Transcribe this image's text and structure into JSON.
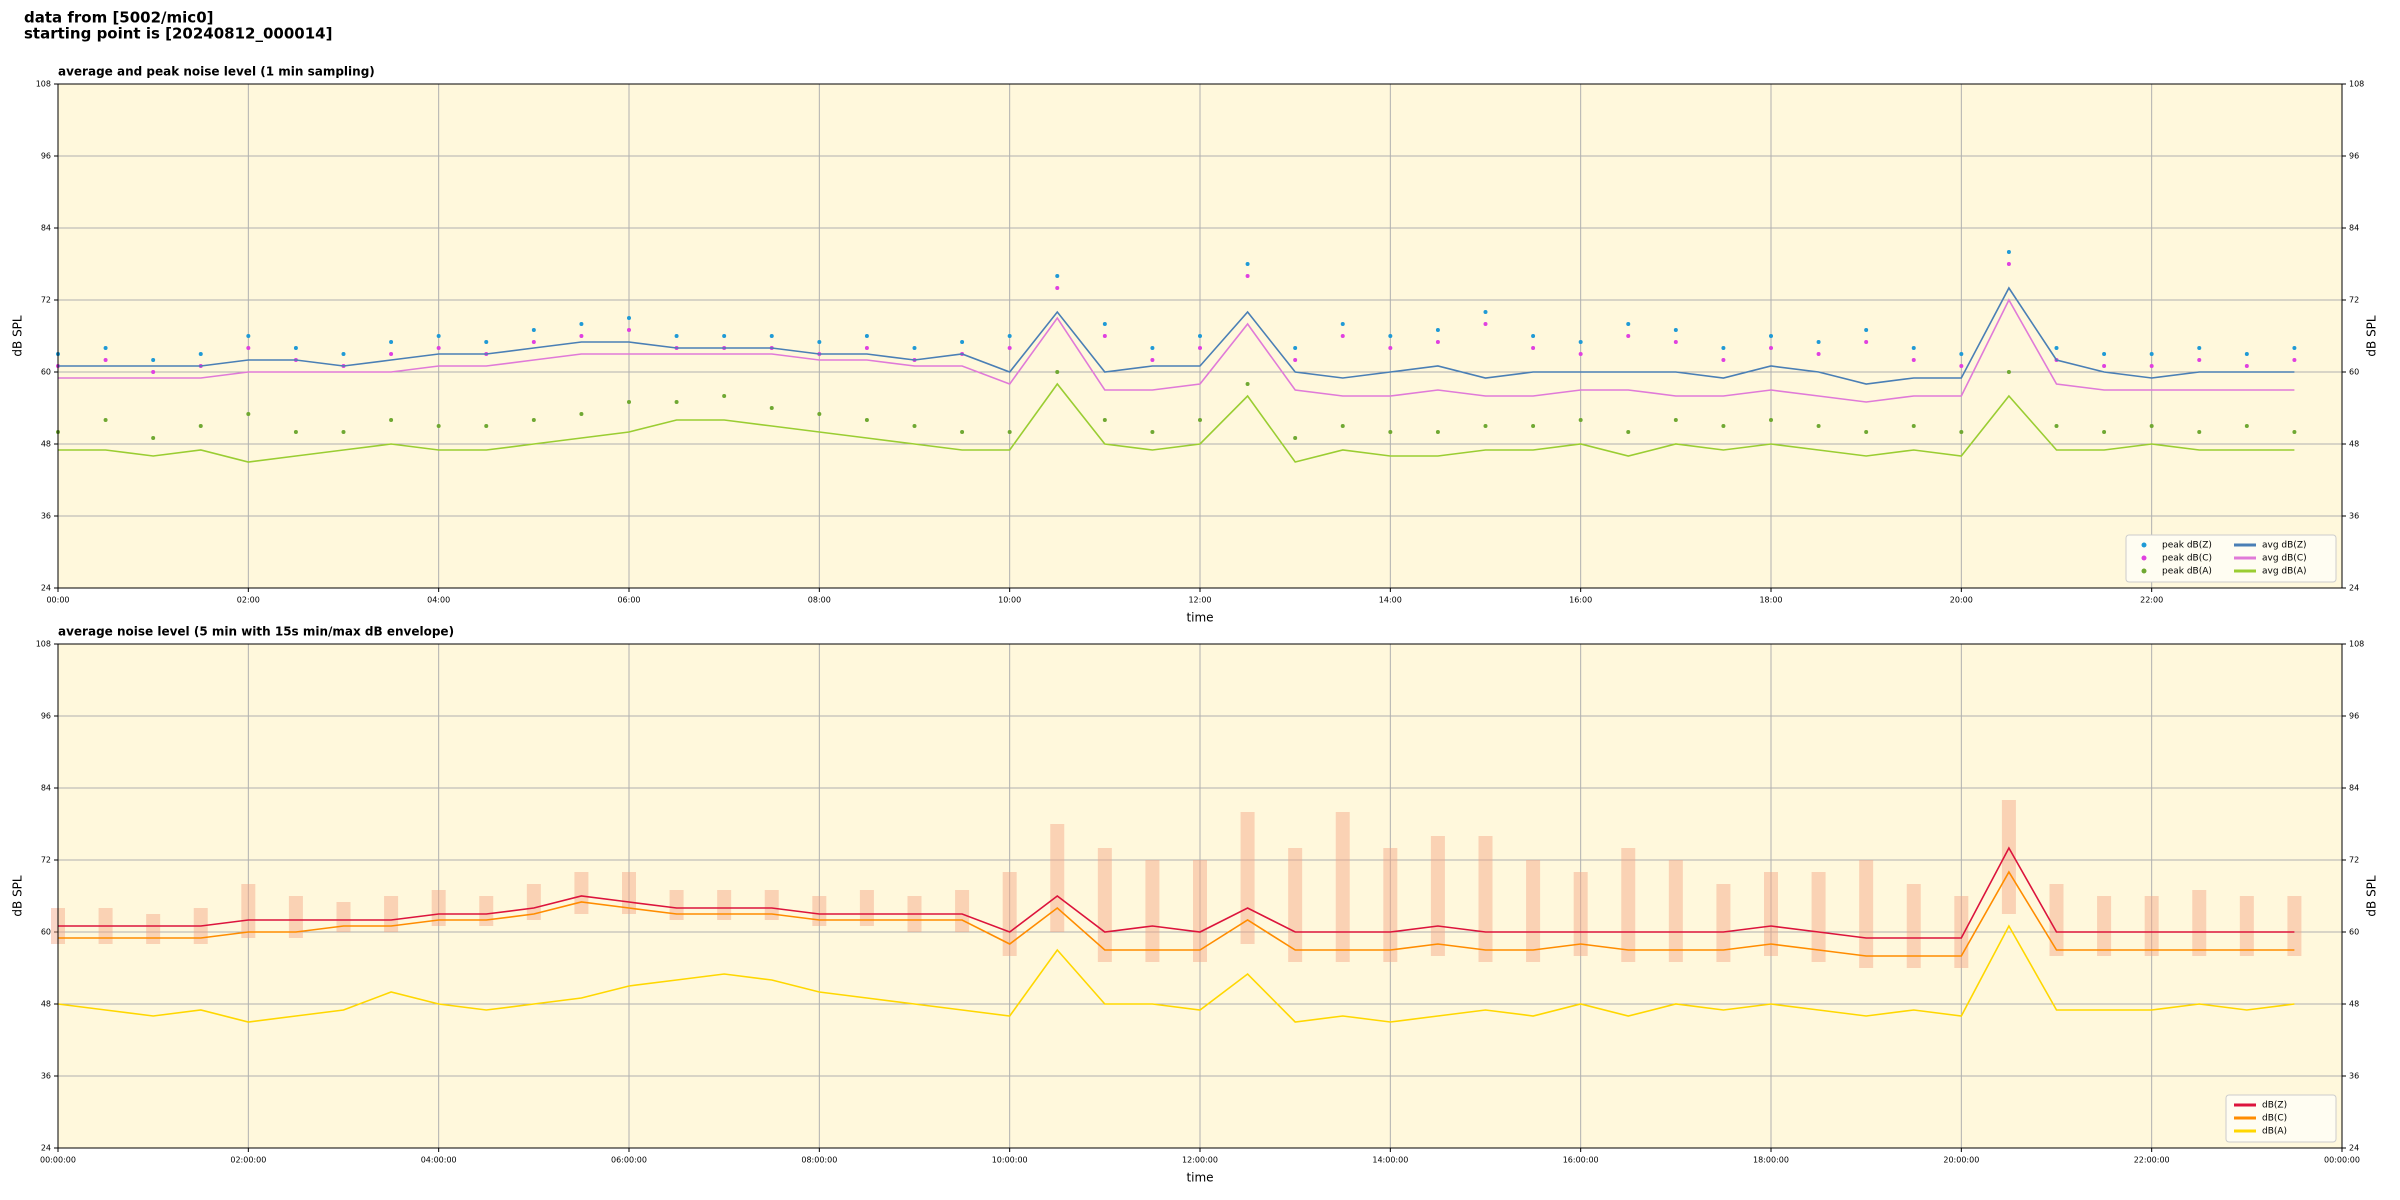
{
  "header": {
    "source": "data from [5002/mic0]",
    "start": "starting point is [20240812_000014]"
  },
  "chart_data": [
    {
      "type": "line",
      "title": "average and peak noise level (1 min sampling)",
      "xlabel": "time",
      "ylabel": "dB SPL",
      "y2label": "dB SPL",
      "xlim": [
        0,
        24
      ],
      "ylim": [
        24,
        108
      ],
      "y2lim": [
        24,
        108
      ],
      "grid": true,
      "background": "#fff8dc",
      "legend": "lower right",
      "legend_columns": 2,
      "xticks": [
        {
          "value": 0,
          "label": "00:00"
        },
        {
          "value": 2,
          "label": "02:00"
        },
        {
          "value": 4,
          "label": "04:00"
        },
        {
          "value": 6,
          "label": "06:00"
        },
        {
          "value": 8,
          "label": "08:00"
        },
        {
          "value": 10,
          "label": "10:00"
        },
        {
          "value": 12,
          "label": "12:00"
        },
        {
          "value": 14,
          "label": "14:00"
        },
        {
          "value": 16,
          "label": "16:00"
        },
        {
          "value": 18,
          "label": "18:00"
        },
        {
          "value": 20,
          "label": "20:00"
        },
        {
          "value": 22,
          "label": "22:00"
        }
      ],
      "yticks": [
        24,
        36,
        48,
        60,
        72,
        84,
        96,
        108
      ],
      "y2ticks": [
        24,
        36,
        48,
        60,
        72,
        84,
        96,
        108
      ],
      "x": [
        0,
        0.5,
        1,
        1.5,
        2,
        2.5,
        3,
        3.5,
        4,
        4.5,
        5,
        5.5,
        6,
        6.5,
        7,
        7.5,
        8,
        8.5,
        9,
        9.5,
        10,
        10.5,
        11,
        11.5,
        12,
        12.5,
        13,
        13.5,
        14,
        14.5,
        15,
        15.5,
        16,
        16.5,
        17,
        17.5,
        18,
        18.5,
        19,
        19.5,
        20,
        20.5,
        21,
        21.5,
        22,
        22.5,
        23,
        23.5
      ],
      "series": [
        {
          "name": "peak dB(Z)",
          "type": "scatter",
          "color": "#1f9ad6",
          "values": [
            63,
            64,
            62,
            63,
            66,
            64,
            63,
            65,
            66,
            65,
            67,
            68,
            69,
            66,
            66,
            66,
            65,
            66,
            64,
            65,
            66,
            76,
            68,
            64,
            66,
            78,
            64,
            68,
            66,
            67,
            70,
            66,
            65,
            68,
            67,
            64,
            66,
            65,
            67,
            64,
            63,
            80,
            64,
            63,
            63,
            64,
            63,
            64
          ]
        },
        {
          "name": "peak dB(C)",
          "type": "scatter",
          "color": "#e040e0",
          "values": [
            61,
            62,
            60,
            61,
            64,
            62,
            61,
            63,
            64,
            63,
            65,
            66,
            67,
            64,
            64,
            64,
            63,
            64,
            62,
            63,
            64,
            74,
            66,
            62,
            64,
            76,
            62,
            66,
            64,
            65,
            68,
            64,
            63,
            66,
            65,
            62,
            64,
            63,
            65,
            62,
            61,
            78,
            62,
            61,
            61,
            62,
            61,
            62
          ]
        },
        {
          "name": "peak dB(A)",
          "type": "scatter",
          "color": "#6fa832",
          "values": [
            50,
            52,
            49,
            51,
            53,
            50,
            50,
            52,
            51,
            51,
            52,
            53,
            55,
            55,
            56,
            54,
            53,
            52,
            51,
            50,
            50,
            60,
            52,
            50,
            52,
            58,
            49,
            51,
            50,
            50,
            51,
            51,
            52,
            50,
            52,
            51,
            52,
            51,
            50,
            51,
            50,
            60,
            51,
            50,
            51,
            50,
            51,
            50
          ]
        },
        {
          "name": "avg dB(Z)",
          "type": "line",
          "color": "#4a7fb5",
          "values": [
            61,
            61,
            61,
            61,
            62,
            62,
            61,
            62,
            63,
            63,
            64,
            65,
            65,
            64,
            64,
            64,
            63,
            63,
            62,
            63,
            60,
            70,
            60,
            61,
            61,
            70,
            60,
            59,
            60,
            61,
            59,
            60,
            60,
            60,
            60,
            59,
            61,
            60,
            58,
            59,
            59,
            74,
            62,
            60,
            59,
            60,
            60,
            60
          ]
        },
        {
          "name": "avg dB(C)",
          "type": "line",
          "color": "#e07ad8",
          "values": [
            59,
            59,
            59,
            59,
            60,
            60,
            60,
            60,
            61,
            61,
            62,
            63,
            63,
            63,
            63,
            63,
            62,
            62,
            61,
            61,
            58,
            69,
            57,
            57,
            58,
            68,
            57,
            56,
            56,
            57,
            56,
            56,
            57,
            57,
            56,
            56,
            57,
            56,
            55,
            56,
            56,
            72,
            58,
            57,
            57,
            57,
            57,
            57
          ]
        },
        {
          "name": "avg dB(A)",
          "type": "line",
          "color": "#9acd32",
          "values": [
            47,
            47,
            46,
            47,
            45,
            46,
            47,
            48,
            47,
            47,
            48,
            49,
            50,
            52,
            52,
            51,
            50,
            49,
            48,
            47,
            47,
            58,
            48,
            47,
            48,
            56,
            45,
            47,
            46,
            46,
            47,
            47,
            48,
            46,
            48,
            47,
            48,
            47,
            46,
            47,
            46,
            56,
            47,
            47,
            48,
            47,
            47,
            47
          ]
        }
      ]
    },
    {
      "type": "line",
      "title": "average noise level (5 min with 15s min/max dB envelope)",
      "xlabel": "time",
      "ylabel": "dB SPL",
      "y2label": "dB SPL",
      "xlim": [
        0,
        24
      ],
      "ylim": [
        24,
        108
      ],
      "y2lim": [
        24,
        108
      ],
      "grid": true,
      "background": "#fff8dc",
      "legend": "lower right",
      "legend_columns": 1,
      "xticks": [
        {
          "value": 0,
          "label": "00:00:00"
        },
        {
          "value": 2,
          "label": "02:00:00"
        },
        {
          "value": 4,
          "label": "04:00:00"
        },
        {
          "value": 6,
          "label": "06:00:00"
        },
        {
          "value": 8,
          "label": "08:00:00"
        },
        {
          "value": 10,
          "label": "10:00:00"
        },
        {
          "value": 12,
          "label": "12:00:00"
        },
        {
          "value": 14,
          "label": "14:00:00"
        },
        {
          "value": 16,
          "label": "16:00:00"
        },
        {
          "value": 18,
          "label": "18:00:00"
        },
        {
          "value": 20,
          "label": "20:00:00"
        },
        {
          "value": 22,
          "label": "22:00:00"
        },
        {
          "value": 24,
          "label": "00:00:00"
        }
      ],
      "yticks": [
        24,
        36,
        48,
        60,
        72,
        84,
        96,
        108
      ],
      "y2ticks": [
        24,
        36,
        48,
        60,
        72,
        84,
        96,
        108
      ],
      "x": [
        0,
        0.5,
        1,
        1.5,
        2,
        2.5,
        3,
        3.5,
        4,
        4.5,
        5,
        5.5,
        6,
        6.5,
        7,
        7.5,
        8,
        8.5,
        9,
        9.5,
        10,
        10.5,
        11,
        11.5,
        12,
        12.5,
        13,
        13.5,
        14,
        14.5,
        15,
        15.5,
        16,
        16.5,
        17,
        17.5,
        18,
        18.5,
        19,
        19.5,
        20,
        20.5,
        21,
        21.5,
        22,
        22.5,
        23,
        23.5
      ],
      "envelope": {
        "color": "#f4a582",
        "low": [
          58,
          58,
          58,
          58,
          59,
          59,
          60,
          60,
          61,
          61,
          62,
          63,
          63,
          62,
          62,
          62,
          61,
          61,
          60,
          60,
          56,
          60,
          55,
          55,
          55,
          58,
          55,
          55,
          55,
          56,
          55,
          55,
          56,
          55,
          55,
          55,
          56,
          55,
          54,
          54,
          54,
          63,
          56,
          56,
          56,
          56,
          56,
          56
        ],
        "high": [
          64,
          64,
          63,
          64,
          68,
          66,
          65,
          66,
          67,
          66,
          68,
          70,
          70,
          67,
          67,
          67,
          66,
          67,
          66,
          67,
          70,
          78,
          74,
          72,
          72,
          80,
          74,
          80,
          74,
          76,
          76,
          72,
          70,
          74,
          72,
          68,
          70,
          70,
          72,
          68,
          66,
          82,
          68,
          66,
          66,
          67,
          66,
          66
        ]
      },
      "series": [
        {
          "name": "dB(Z)",
          "type": "line",
          "color": "#dc143c",
          "values": [
            61,
            61,
            61,
            61,
            62,
            62,
            62,
            62,
            63,
            63,
            64,
            66,
            65,
            64,
            64,
            64,
            63,
            63,
            63,
            63,
            60,
            66,
            60,
            61,
            60,
            64,
            60,
            60,
            60,
            61,
            60,
            60,
            60,
            60,
            60,
            60,
            61,
            60,
            59,
            59,
            59,
            74,
            60,
            60,
            60,
            60,
            60,
            60
          ]
        },
        {
          "name": "dB(C)",
          "type": "line",
          "color": "#ff8c00",
          "values": [
            59,
            59,
            59,
            59,
            60,
            60,
            61,
            61,
            62,
            62,
            63,
            65,
            64,
            63,
            63,
            63,
            62,
            62,
            62,
            62,
            58,
            64,
            57,
            57,
            57,
            62,
            57,
            57,
            57,
            58,
            57,
            57,
            58,
            57,
            57,
            57,
            58,
            57,
            56,
            56,
            56,
            70,
            57,
            57,
            57,
            57,
            57,
            57
          ]
        },
        {
          "name": "dB(A)",
          "type": "line",
          "color": "#ffd700",
          "values": [
            48,
            47,
            46,
            47,
            45,
            46,
            47,
            50,
            48,
            47,
            48,
            49,
            51,
            52,
            53,
            52,
            50,
            49,
            48,
            47,
            46,
            57,
            48,
            48,
            47,
            53,
            45,
            46,
            45,
            46,
            47,
            46,
            48,
            46,
            48,
            47,
            48,
            47,
            46,
            47,
            46,
            61,
            47,
            47,
            47,
            48,
            47,
            48
          ]
        }
      ]
    }
  ]
}
